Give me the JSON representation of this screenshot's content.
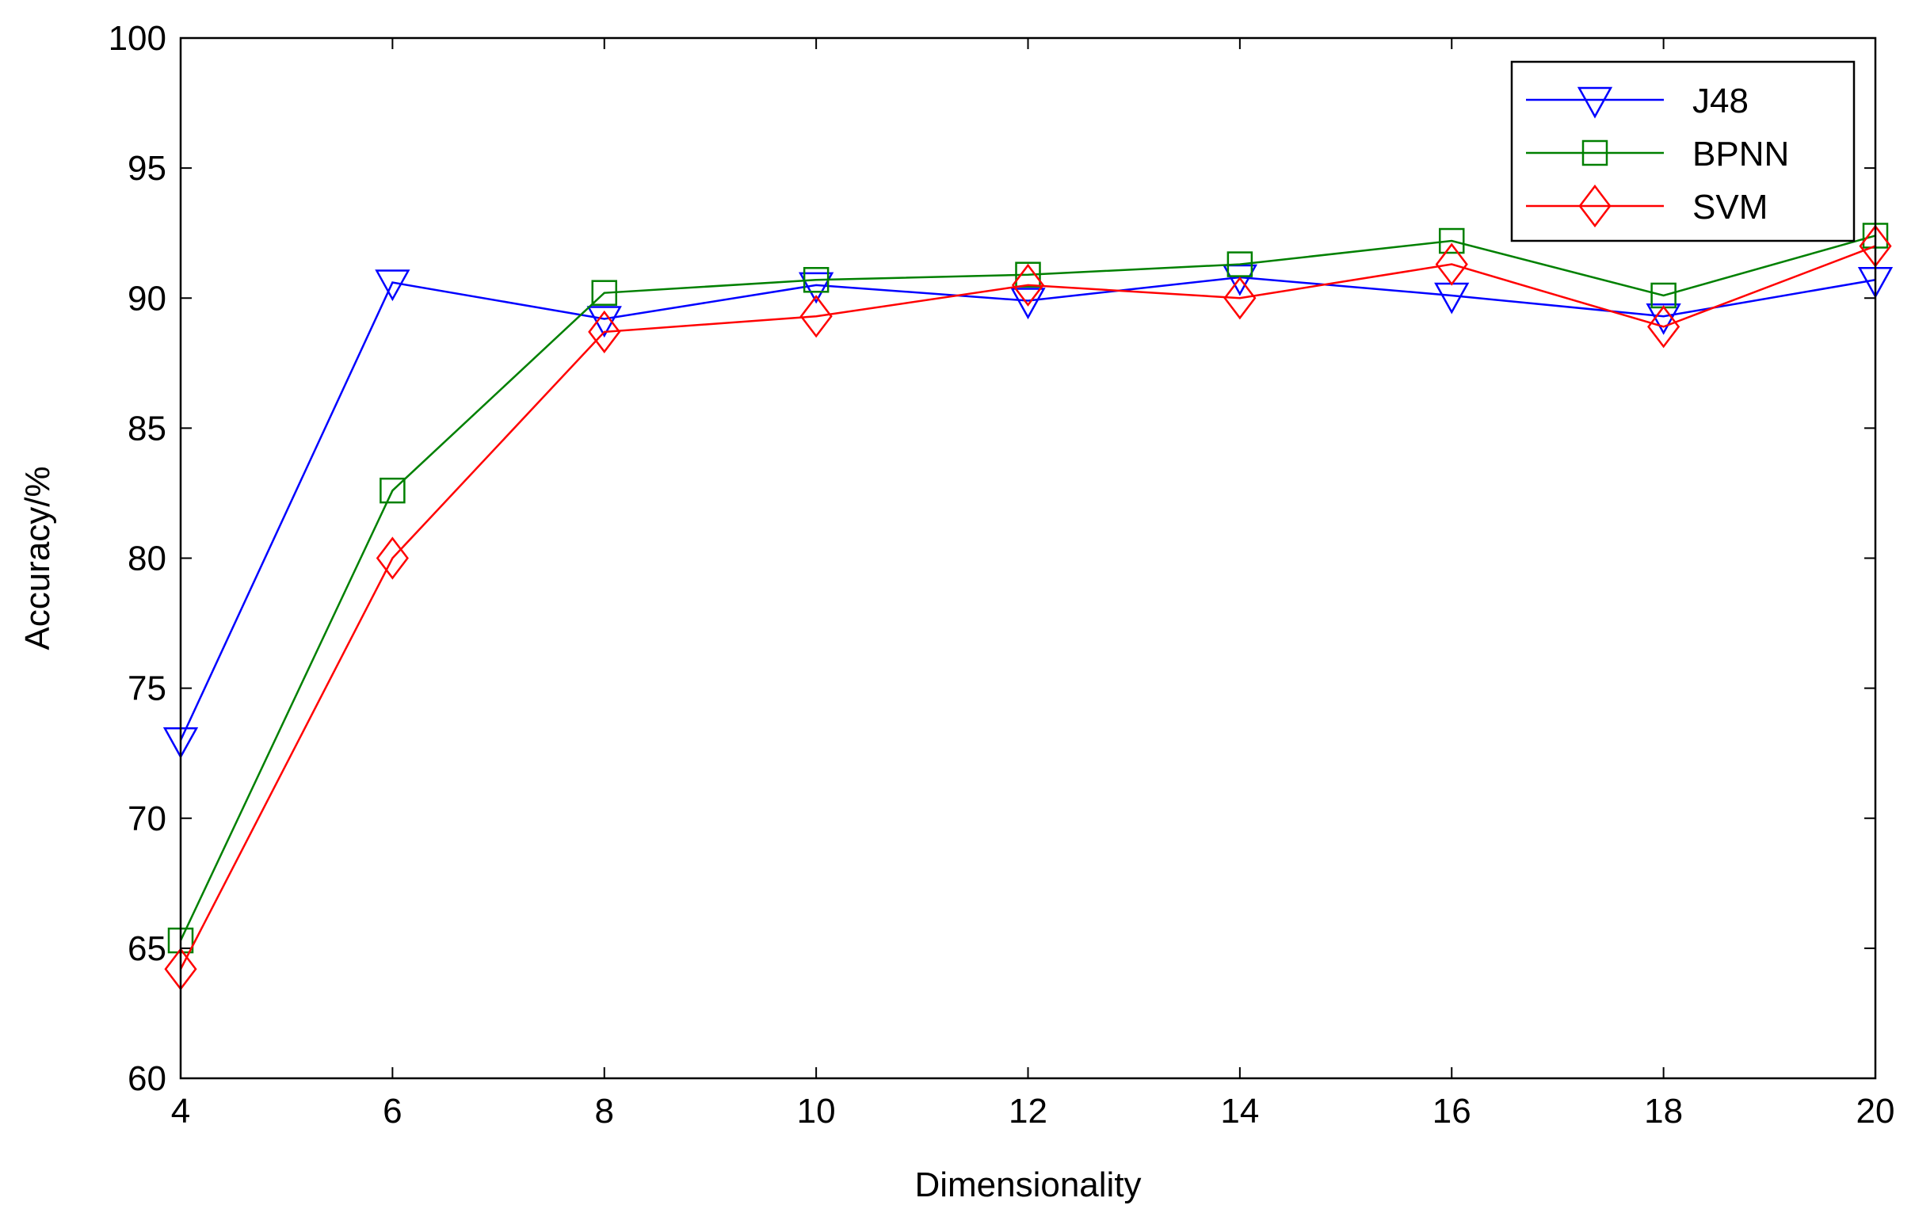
{
  "chart_data": {
    "type": "line",
    "title": "",
    "xlabel": "Dimensionality",
    "ylabel": "Accuracy/%",
    "xlim": [
      4,
      20
    ],
    "ylim": [
      60,
      100
    ],
    "x_ticks": [
      4,
      6,
      8,
      10,
      12,
      14,
      16,
      18,
      20
    ],
    "y_ticks": [
      60,
      65,
      70,
      75,
      80,
      85,
      90,
      95,
      100
    ],
    "grid": false,
    "legend_position": "top-right",
    "x": [
      4,
      6,
      8,
      10,
      12,
      14,
      16,
      18,
      20
    ],
    "series": [
      {
        "name": "J48",
        "color": "#0000ff",
        "marker": "triangle-down",
        "values": [
          73.0,
          90.6,
          89.2,
          90.5,
          89.9,
          90.8,
          90.1,
          89.3,
          90.7
        ]
      },
      {
        "name": "BPNN",
        "color": "#008000",
        "marker": "square",
        "values": [
          65.3,
          82.6,
          90.2,
          90.7,
          90.9,
          91.3,
          92.2,
          90.1,
          92.4
        ]
      },
      {
        "name": "SVM",
        "color": "#ff0000",
        "marker": "diamond",
        "values": [
          64.2,
          80.0,
          88.7,
          89.3,
          90.5,
          90.0,
          91.3,
          88.9,
          92.0
        ]
      }
    ]
  }
}
